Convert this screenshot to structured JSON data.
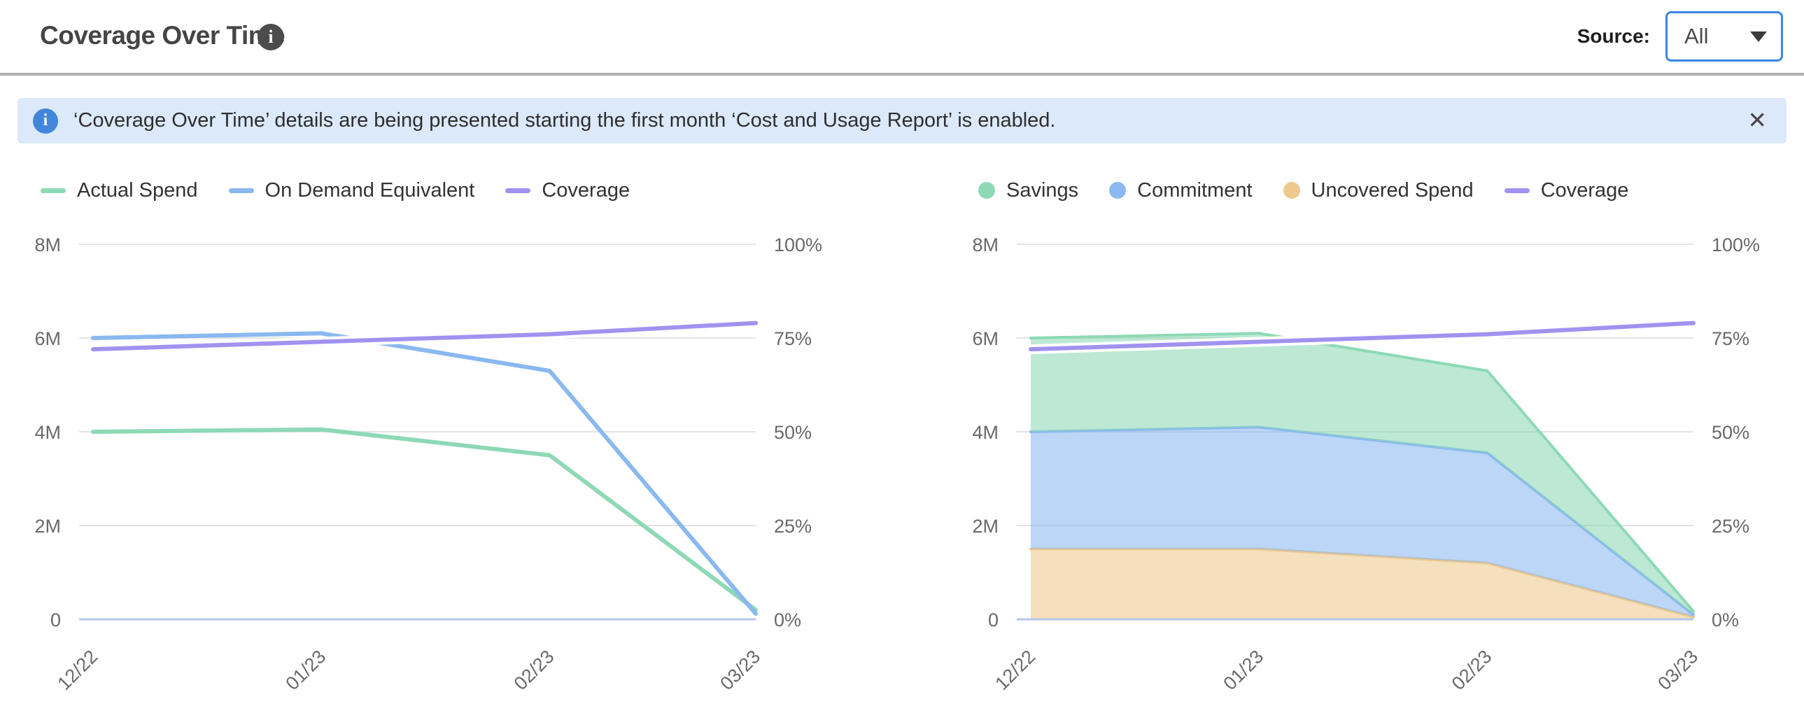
{
  "header": {
    "title": "Coverage Over Time",
    "source_label": "Source:",
    "source_value": "All"
  },
  "banner": {
    "text": "‘Coverage Over Time’ details are being presented starting the first month ‘Cost and Usage Report’ is enabled.",
    "close_glyph": "✕",
    "info_glyph": "i"
  },
  "icons": {
    "title_info_glyph": "i"
  },
  "colors": {
    "green": "#8dd9b5",
    "blue": "#8ab8f0",
    "purple": "#a192f0",
    "orange": "#eec98e",
    "accent_blue": "#3c86e0",
    "banner_bg": "#dbe9fb",
    "grid": "#e3e3e3",
    "zero_axis": "#b9c5e8",
    "axis_text": "#696969"
  },
  "chart_data": [
    {
      "type": "line",
      "title": "",
      "x_labels": [
        "12/22",
        "01/23",
        "02/23",
        "03/23"
      ],
      "x_day_offsets": [
        0,
        31,
        62,
        90
      ],
      "left_axis": {
        "ticks": [
          "8M",
          "6M",
          "4M",
          "2M",
          "0"
        ],
        "ylim": [
          0,
          8
        ],
        "unit": "M"
      },
      "right_axis": {
        "ticks": [
          "100%",
          "75%",
          "50%",
          "25%",
          "0%"
        ],
        "ylim": [
          0,
          100
        ],
        "unit": "%"
      },
      "grid": true,
      "legend_position": "top-left",
      "series": [
        {
          "name": "Actual Spend",
          "color": "#8dd9b5",
          "axis": "left",
          "values": [
            4.0,
            4.05,
            3.5,
            0.2
          ]
        },
        {
          "name": "On Demand Equivalent",
          "color": "#8ab8f0",
          "axis": "left",
          "values": [
            6.0,
            6.1,
            5.3,
            0.12
          ]
        },
        {
          "name": "Coverage",
          "color": "#a192f0",
          "axis": "right",
          "values": [
            72,
            74,
            76,
            79
          ]
        }
      ]
    },
    {
      "type": "stacked-area",
      "title": "",
      "x_labels": [
        "12/22",
        "01/23",
        "02/23",
        "03/23"
      ],
      "x_day_offsets": [
        0,
        31,
        62,
        90
      ],
      "left_axis": {
        "ticks": [
          "8M",
          "6M",
          "4M",
          "2M",
          "0"
        ],
        "ylim": [
          0,
          8
        ],
        "unit": "M"
      },
      "right_axis": {
        "ticks": [
          "100%",
          "75%",
          "50%",
          "25%",
          "0%"
        ],
        "ylim": [
          0,
          100
        ],
        "unit": "%"
      },
      "grid": true,
      "legend_position": "top-left",
      "series": [
        {
          "name": "Uncovered Spend",
          "color": "#eec98e",
          "axis": "left",
          "kind": "area",
          "values": [
            1.5,
            1.5,
            1.2,
            0.05
          ]
        },
        {
          "name": "Commitment",
          "color": "#8ab8f0",
          "axis": "left",
          "kind": "area",
          "values": [
            2.5,
            2.6,
            2.35,
            0.05
          ]
        },
        {
          "name": "Savings",
          "color": "#8dd9b5",
          "axis": "left",
          "kind": "area",
          "values": [
            2.0,
            2.0,
            1.75,
            0.07
          ]
        },
        {
          "name": "Coverage",
          "color": "#a192f0",
          "axis": "right",
          "kind": "line",
          "values": [
            72,
            74,
            76,
            79
          ]
        }
      ]
    }
  ]
}
